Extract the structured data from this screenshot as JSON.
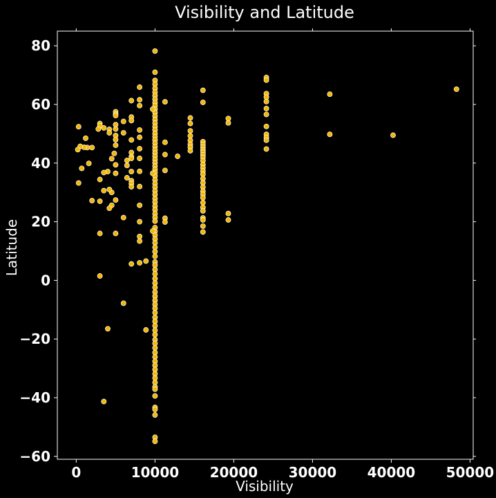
{
  "colors": {
    "background": "#000000",
    "point": "#f5b800",
    "point_edge": "#ffffff",
    "axes": "#ffffff",
    "text": "#ffffff"
  },
  "chart_data": {
    "type": "scatter",
    "title": "Visibility and Latitude",
    "xlabel": "Visibility",
    "ylabel": "Latitude",
    "xlim": [
      -2400,
      50400
    ],
    "ylim": [
      -61,
      85
    ],
    "xticks": [
      0,
      10000,
      20000,
      30000,
      40000,
      50000
    ],
    "yticks": [
      -60,
      -40,
      -20,
      0,
      20,
      40,
      60,
      80
    ],
    "xtick_labels": [
      "0",
      "10000",
      "20000",
      "30000",
      "40000",
      "50000"
    ],
    "ytick_labels": [
      "−60",
      "−40",
      "−20",
      "0",
      "20",
      "40",
      "60",
      "80"
    ],
    "grid": false,
    "legend": "none",
    "points": [
      [
        48280,
        65.2
      ],
      [
        40230,
        49.5
      ],
      [
        32190,
        63.5
      ],
      [
        32190,
        49.8
      ],
      [
        24140,
        69.2
      ],
      [
        24140,
        68.3
      ],
      [
        24140,
        63.7
      ],
      [
        24140,
        62.5
      ],
      [
        24140,
        61.0
      ],
      [
        24140,
        58.6
      ],
      [
        24140,
        56.6
      ],
      [
        24140,
        52.5
      ],
      [
        24140,
        49.8
      ],
      [
        24140,
        48.7
      ],
      [
        24140,
        47.8
      ],
      [
        24140,
        44.8
      ],
      [
        19310,
        55.2
      ],
      [
        19310,
        53.7
      ],
      [
        19310,
        22.8
      ],
      [
        19310,
        20.6
      ],
      [
        16090,
        64.8
      ],
      [
        16090,
        60.7
      ],
      [
        16090,
        47.3
      ],
      [
        16090,
        46.4
      ],
      [
        16090,
        45.4
      ],
      [
        16090,
        44.5
      ],
      [
        16090,
        43.7
      ],
      [
        16090,
        42.8
      ],
      [
        16090,
        41.9
      ],
      [
        16090,
        40.8
      ],
      [
        16090,
        39.5
      ],
      [
        16090,
        38.4
      ],
      [
        16090,
        37.3
      ],
      [
        16090,
        36.2
      ],
      [
        16090,
        34.7
      ],
      [
        16090,
        33.3
      ],
      [
        16090,
        31.8
      ],
      [
        16090,
        30.4
      ],
      [
        16090,
        29.4
      ],
      [
        16090,
        28.2
      ],
      [
        16090,
        26.5
      ],
      [
        16090,
        24.9
      ],
      [
        16090,
        23.7
      ],
      [
        16090,
        21.3
      ],
      [
        16090,
        20.6
      ],
      [
        16090,
        18.5
      ],
      [
        16090,
        16.5
      ],
      [
        14480,
        55.4
      ],
      [
        14480,
        53.5
      ],
      [
        14480,
        51.0
      ],
      [
        14480,
        49.3
      ],
      [
        14480,
        47.7
      ],
      [
        14480,
        46.4
      ],
      [
        14480,
        45.4
      ],
      [
        14480,
        44.2
      ],
      [
        12870,
        42.3
      ],
      [
        11270,
        60.9
      ],
      [
        11270,
        47.1
      ],
      [
        11270,
        42.9
      ],
      [
        11270,
        37.5
      ],
      [
        11270,
        21.2
      ],
      [
        11270,
        19.9
      ],
      [
        10000,
        78.2
      ],
      [
        10000,
        71.0
      ],
      [
        10000,
        68.2
      ],
      [
        10000,
        66.9
      ],
      [
        10000,
        65.5
      ],
      [
        10000,
        64.2
      ],
      [
        10000,
        63.0
      ],
      [
        10000,
        61.8
      ],
      [
        10000,
        60.6
      ],
      [
        10000,
        59.6
      ],
      [
        10000,
        58.4
      ],
      [
        10000,
        57.2
      ],
      [
        10000,
        56.0
      ],
      [
        10000,
        54.8
      ],
      [
        10000,
        53.6
      ],
      [
        10000,
        52.4
      ],
      [
        10000,
        51.3
      ],
      [
        10000,
        50.1
      ],
      [
        10000,
        49.0
      ],
      [
        10000,
        47.9
      ],
      [
        10000,
        46.8
      ],
      [
        10000,
        45.6
      ],
      [
        10000,
        44.5
      ],
      [
        10000,
        43.4
      ],
      [
        10000,
        42.3
      ],
      [
        10000,
        41.2
      ],
      [
        10000,
        40.1
      ],
      [
        10000,
        39.0
      ],
      [
        10000,
        37.9
      ],
      [
        10000,
        36.8
      ],
      [
        10000,
        35.6
      ],
      [
        10000,
        34.3
      ],
      [
        10000,
        33.0
      ],
      [
        10000,
        31.8
      ],
      [
        10000,
        30.5
      ],
      [
        10000,
        29.3
      ],
      [
        10000,
        27.9
      ],
      [
        10000,
        26.7
      ],
      [
        10000,
        25.3
      ],
      [
        10000,
        24.1
      ],
      [
        10000,
        22.7
      ],
      [
        10000,
        21.5
      ],
      [
        10000,
        20.2
      ],
      [
        10000,
        18.0
      ],
      [
        10000,
        16.7
      ],
      [
        10000,
        15.4
      ],
      [
        10000,
        14.1
      ],
      [
        10000,
        12.8
      ],
      [
        10000,
        11.3
      ],
      [
        10000,
        9.8
      ],
      [
        10000,
        8.2
      ],
      [
        10000,
        6.3
      ],
      [
        10000,
        5.2
      ],
      [
        10000,
        3.7
      ],
      [
        10000,
        2.2
      ],
      [
        10000,
        0.6
      ],
      [
        10000,
        -0.9
      ],
      [
        10000,
        -2.4
      ],
      [
        10000,
        -4.0
      ],
      [
        10000,
        -5.4
      ],
      [
        10000,
        -6.8
      ],
      [
        10000,
        -8.2
      ],
      [
        10000,
        -9.5
      ],
      [
        10000,
        -11.0
      ],
      [
        10000,
        -12.6
      ],
      [
        10000,
        -14.0
      ],
      [
        10000,
        -15.5
      ],
      [
        10000,
        -17.0
      ],
      [
        10000,
        -18.5
      ],
      [
        10000,
        -20.2
      ],
      [
        10000,
        -21.5
      ],
      [
        10000,
        -23.0
      ],
      [
        10000,
        -24.6
      ],
      [
        10000,
        -26.1
      ],
      [
        10000,
        -27.6
      ],
      [
        10000,
        -29.0
      ],
      [
        10000,
        -30.4
      ],
      [
        10000,
        -31.9
      ],
      [
        10000,
        -33.3
      ],
      [
        10000,
        -34.8
      ],
      [
        10000,
        -36.3
      ],
      [
        10000,
        -37.1
      ],
      [
        10000,
        -39.4
      ],
      [
        10000,
        -43.3
      ],
      [
        10000,
        -44.0
      ],
      [
        10000,
        -45.9
      ],
      [
        10000,
        -53.5
      ],
      [
        10000,
        -54.9
      ],
      [
        9700,
        58.4
      ],
      [
        9700,
        36.5
      ],
      [
        9700,
        16.8
      ],
      [
        8850,
        6.6
      ],
      [
        8850,
        -16.9
      ],
      [
        8050,
        65.9
      ],
      [
        8050,
        61.6
      ],
      [
        8050,
        59.6
      ],
      [
        8050,
        51.3
      ],
      [
        8050,
        48.8
      ],
      [
        8050,
        44.9
      ],
      [
        8050,
        41.6
      ],
      [
        8050,
        37.2
      ],
      [
        8050,
        32.0
      ],
      [
        8050,
        25.6
      ],
      [
        8050,
        20.0
      ],
      [
        8050,
        15.0
      ],
      [
        8050,
        13.4
      ],
      [
        8050,
        6.0
      ],
      [
        7000,
        61.3
      ],
      [
        7000,
        55.7
      ],
      [
        7000,
        54.5
      ],
      [
        7000,
        47.9
      ],
      [
        7000,
        43.6
      ],
      [
        7000,
        42.2
      ],
      [
        7000,
        41.6
      ],
      [
        7000,
        37.1
      ],
      [
        7000,
        34.0
      ],
      [
        7000,
        33.0
      ],
      [
        7000,
        31.9
      ],
      [
        7000,
        5.6
      ],
      [
        6440,
        40.9
      ],
      [
        6440,
        39.2
      ],
      [
        6440,
        35.0
      ],
      [
        6000,
        54.2
      ],
      [
        6000,
        50.3
      ],
      [
        6000,
        21.4
      ],
      [
        6000,
        -7.8
      ],
      [
        5000,
        57.5
      ],
      [
        5000,
        56.7
      ],
      [
        5000,
        56.2
      ],
      [
        5000,
        53.1
      ],
      [
        5000,
        51.6
      ],
      [
        5000,
        49.4
      ],
      [
        5000,
        48.0
      ],
      [
        5000,
        46.1
      ],
      [
        5000,
        39.4
      ],
      [
        5000,
        36.5
      ],
      [
        5000,
        27.4
      ],
      [
        5000,
        16.0
      ],
      [
        4830,
        43.3
      ],
      [
        4500,
        41.5
      ],
      [
        4500,
        30.0
      ],
      [
        4500,
        25.6
      ],
      [
        4200,
        51.5
      ],
      [
        4200,
        50.3
      ],
      [
        4200,
        31.0
      ],
      [
        4200,
        24.6
      ],
      [
        4000,
        37.1
      ],
      [
        4000,
        -16.5
      ],
      [
        3500,
        52.0
      ],
      [
        3500,
        36.8
      ],
      [
        3500,
        30.6
      ],
      [
        3500,
        -41.3
      ],
      [
        3000,
        53.5
      ],
      [
        3000,
        52.7
      ],
      [
        3000,
        34.4
      ],
      [
        3000,
        27.0
      ],
      [
        3000,
        16.0
      ],
      [
        3000,
        1.5
      ],
      [
        2800,
        51.6
      ],
      [
        2000,
        45.3
      ],
      [
        2000,
        27.2
      ],
      [
        1600,
        39.9
      ],
      [
        1400,
        45.3
      ],
      [
        1200,
        48.5
      ],
      [
        1000,
        45.4
      ],
      [
        700,
        38.2
      ],
      [
        500,
        45.7
      ],
      [
        300,
        52.4
      ],
      [
        300,
        33.2
      ],
      [
        200,
        44.6
      ]
    ]
  }
}
